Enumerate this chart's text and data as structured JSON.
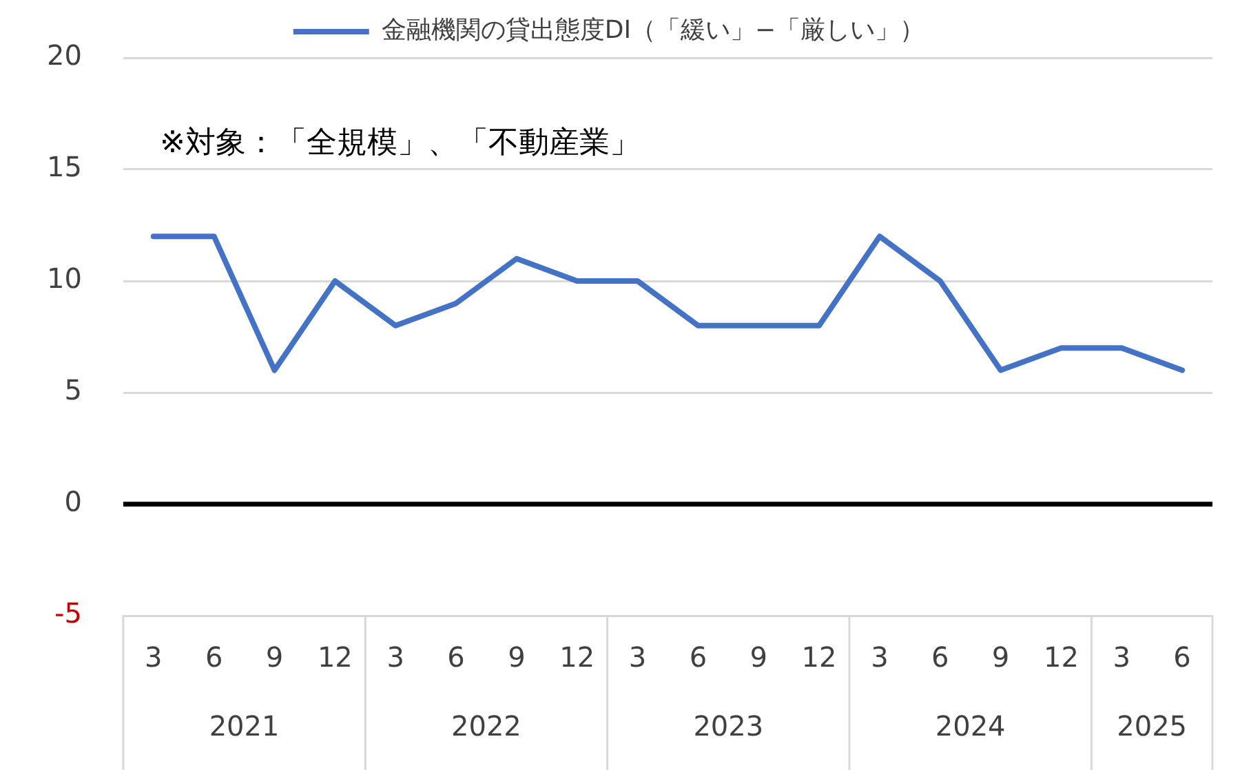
{
  "chart_data": {
    "type": "line",
    "categories": [
      "3",
      "6",
      "9",
      "12",
      "3",
      "6",
      "9",
      "12",
      "3",
      "6",
      "9",
      "12",
      "3",
      "6",
      "9",
      "12",
      "3",
      "6"
    ],
    "series": [
      {
        "name": "金融機関の貸出態度DI（「緩い」−「厳しい」）",
        "color": "#4472c4",
        "values": [
          12,
          12,
          6,
          10,
          8,
          9,
          11,
          10,
          10,
          8,
          8,
          8,
          12,
          10,
          6,
          7,
          7,
          6
        ]
      }
    ],
    "ylim": [
      -5,
      20
    ],
    "yticks": [
      -5,
      0,
      5,
      10,
      15,
      20
    ],
    "grid": "y",
    "legend": "top",
    "marker": "none",
    "line_style": "solid",
    "ref_lines": [
      {
        "axis": "y",
        "value": 0,
        "color": "#000000"
      }
    ],
    "annotations": [
      "※対象：「全規模」、「不動産業」",
      "2021",
      "2022",
      "2023",
      "2024",
      "2025"
    ]
  }
}
